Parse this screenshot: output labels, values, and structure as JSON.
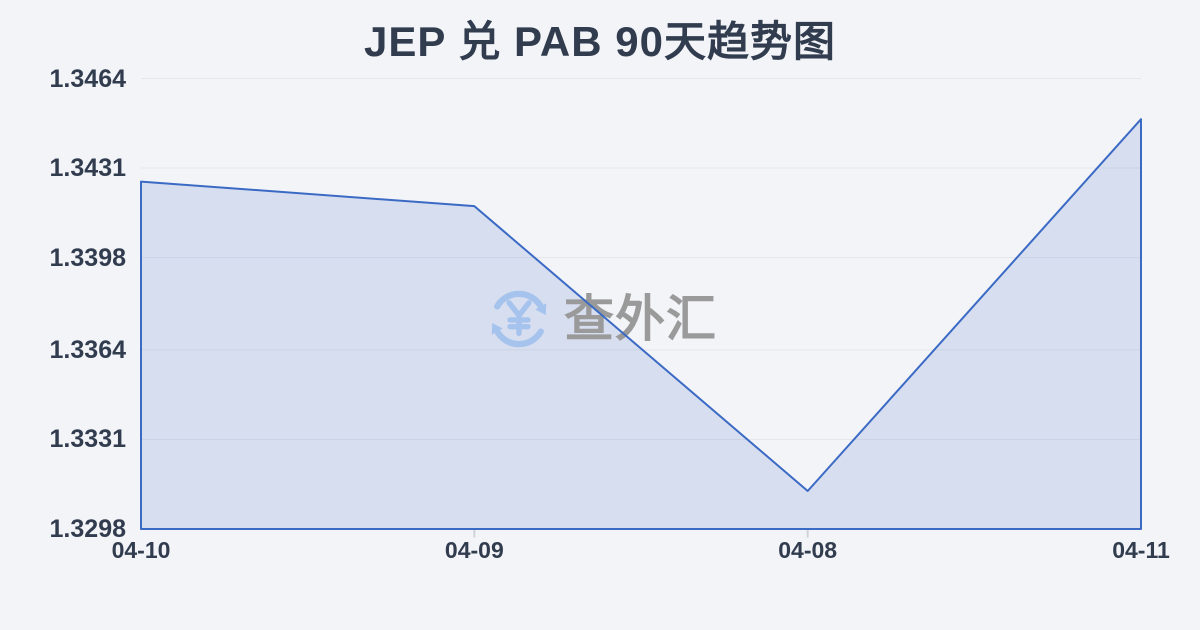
{
  "header": {
    "title": "JEP 兑 PAB 90天趋势图"
  },
  "watermark": {
    "text": "查外汇",
    "icon": "currency-exchange-refresh-yen",
    "icon_color": "#a6c3ee",
    "text_color": "#9a9a9a"
  },
  "colors": {
    "background": "#f3f4f7",
    "text": "#313c4f",
    "gridline": "#e4e7ec",
    "tick": "#cfd3da",
    "line": "#3b6ac5",
    "area_fill": "#4472c4",
    "area_fill_opacity": 0.16
  },
  "chart_data": {
    "type": "area",
    "title": "JEP 兑 PAB 90天趋势图",
    "x": [
      "04-10",
      "04-09",
      "04-08",
      "04-11"
    ],
    "series": [
      {
        "name": "JEP/PAB",
        "values": [
          1.3426,
          1.3417,
          1.3312,
          1.3449
        ]
      }
    ],
    "yticks": [
      "1.3464",
      "1.3431",
      "1.3398",
      "1.3364",
      "1.3331",
      "1.3298"
    ],
    "ylim": [
      1.3298,
      1.3464
    ],
    "xlabel": "",
    "ylabel": "",
    "grid": "horizontal",
    "legend": "none"
  }
}
